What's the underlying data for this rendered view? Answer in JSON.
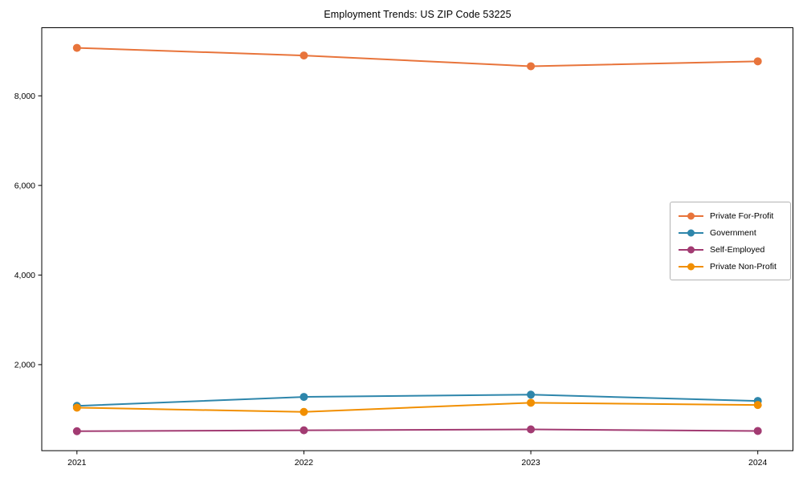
{
  "chart_data": {
    "type": "line",
    "title": "Employment Trends: US ZIP Code 53225",
    "x": [
      "2021",
      "2022",
      "2023",
      "2024"
    ],
    "series": [
      {
        "name": "Private For-Profit",
        "color": "#E8743B",
        "values": [
          9070,
          8900,
          8660,
          8770
        ]
      },
      {
        "name": "Government",
        "color": "#2E86AB",
        "values": [
          1080,
          1280,
          1330,
          1190
        ]
      },
      {
        "name": "Self-Employed",
        "color": "#A23B72",
        "values": [
          515,
          535,
          555,
          520
        ]
      },
      {
        "name": "Private Non-Profit",
        "color": "#F18F01",
        "values": [
          1040,
          945,
          1150,
          1100
        ]
      }
    ],
    "xlabel": "",
    "ylabel": "",
    "yticks": {
      "values": [
        2000,
        4000,
        6000,
        8000
      ],
      "labels": [
        "2,000",
        "4,000",
        "6,000",
        "8,000"
      ]
    },
    "ylim": [
      80,
      9520
    ],
    "grid": false,
    "legend_position": "center-right",
    "marker": "circle",
    "axis_color": "#000000",
    "background_color": "#ffffff"
  }
}
